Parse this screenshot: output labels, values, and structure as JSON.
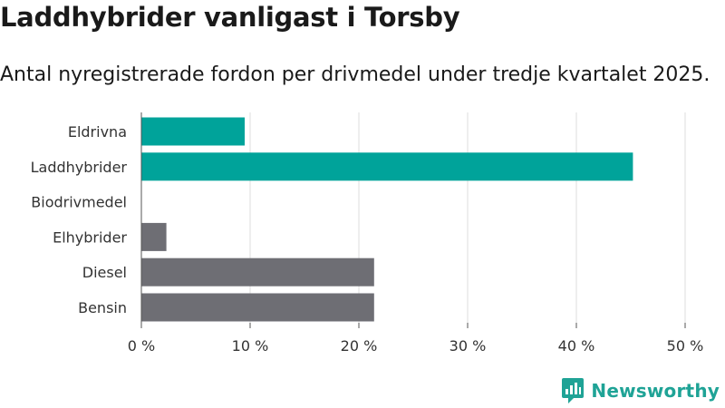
{
  "header": {
    "title": "Laddhybrider vanligast i Torsby",
    "subtitle": "Antal nyregistrerade fordon per drivmedel under tredje kvartalet 2025."
  },
  "branding": {
    "name": "Newsworthy",
    "color": "#1fa396",
    "icon": "newsworthy-chart-logo-icon"
  },
  "chart_data": {
    "type": "bar",
    "orientation": "horizontal",
    "title": "Laddhybrider vanligast i Torsby",
    "subtitle": "Antal nyregistrerade fordon per drivmedel under tredje kvartalet 2025.",
    "categories": [
      "Eldrivna",
      "Laddhybrider",
      "Biodrivmedel",
      "Elhybrider",
      "Diesel",
      "Bensin"
    ],
    "values": [
      9.5,
      45.2,
      0,
      2.3,
      21.4,
      21.4
    ],
    "colors": [
      "#00a39a",
      "#00a39a",
      "#00a39a",
      "#6e6e74",
      "#6e6e74",
      "#6e6e74"
    ],
    "xlim": [
      0,
      50
    ],
    "xticks": [
      0,
      10,
      20,
      30,
      40,
      50
    ],
    "xtick_labels": [
      "0 %",
      "10 %",
      "20 %",
      "30 %",
      "40 %",
      "50 %"
    ],
    "xlabel": "",
    "ylabel": "",
    "grid": true,
    "legend": "none"
  }
}
